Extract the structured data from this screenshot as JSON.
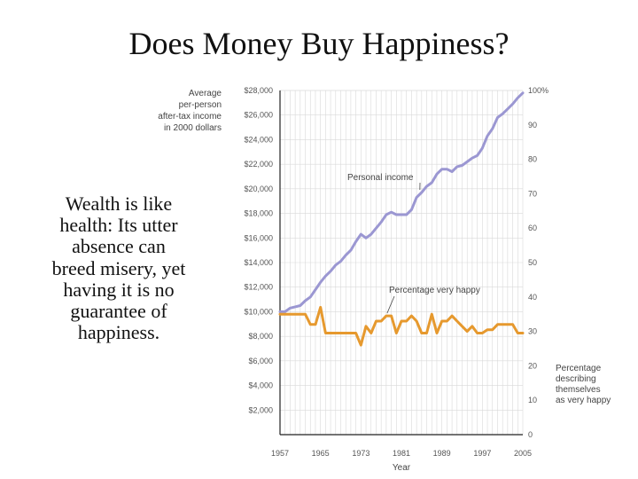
{
  "slide": {
    "title": "Does Money Buy Happiness?",
    "body_lines": [
      "Wealth is like",
      "health: Its utter",
      "absence can",
      "breed misery, yet",
      "having it is no",
      "guarantee of",
      "happiness."
    ]
  },
  "chart_data": {
    "type": "line",
    "xlabel": "Year",
    "x_ticks": [
      "1957",
      "1965",
      "1973",
      "1981",
      "1989",
      "1997",
      "2005"
    ],
    "xlim": [
      1957,
      2005
    ],
    "left_axis": {
      "label_lines": [
        "Average",
        "per-person",
        "after-tax income",
        "in 2000 dollars"
      ],
      "ylim": [
        0,
        28000
      ],
      "ticks": [
        "$2,000",
        "$4,000",
        "$6,000",
        "$8,000",
        "$10,000",
        "$12,000",
        "$14,000",
        "$16,000",
        "$18,000",
        "$20,000",
        "$22,000",
        "$24,000",
        "$26,000",
        "$28,000"
      ]
    },
    "right_axis": {
      "label_lines": [
        "Percentage",
        "describing",
        "themselves",
        "as very happy"
      ],
      "ylim": [
        0,
        100
      ],
      "ticks": [
        "0",
        "10",
        "20",
        "30",
        "40",
        "50",
        "60",
        "70",
        "80",
        "90",
        "100%"
      ]
    },
    "grid": true,
    "series": [
      {
        "name": "Personal income",
        "axis": "left",
        "color": "#9b97d2",
        "x": [
          1957,
          1958,
          1959,
          1960,
          1961,
          1962,
          1963,
          1964,
          1965,
          1966,
          1967,
          1968,
          1969,
          1970,
          1971,
          1972,
          1973,
          1974,
          1975,
          1976,
          1977,
          1978,
          1979,
          1980,
          1981,
          1982,
          1983,
          1984,
          1985,
          1986,
          1987,
          1988,
          1989,
          1990,
          1991,
          1992,
          1993,
          1994,
          1995,
          1996,
          1997,
          1998,
          1999,
          2000,
          2001,
          2002,
          2003,
          2004,
          2005
        ],
        "values": [
          10000,
          10000,
          10300,
          10400,
          10500,
          10900,
          11200,
          11800,
          12400,
          12900,
          13300,
          13800,
          14100,
          14600,
          15000,
          15700,
          16300,
          16000,
          16300,
          16800,
          17300,
          17900,
          18100,
          17900,
          17900,
          17900,
          18300,
          19300,
          19700,
          20200,
          20500,
          21200,
          21600,
          21600,
          21400,
          21800,
          21900,
          22200,
          22500,
          22700,
          23300,
          24300,
          24900,
          25800,
          26100,
          26500,
          26900,
          27400,
          27800
        ]
      },
      {
        "name": "Percentage very happy",
        "axis": "right",
        "color": "#e6992e",
        "x": [
          1957,
          1958,
          1959,
          1960,
          1961,
          1962,
          1963,
          1964,
          1965,
          1966,
          1967,
          1968,
          1969,
          1970,
          1971,
          1972,
          1973,
          1974,
          1975,
          1976,
          1977,
          1978,
          1979,
          1980,
          1981,
          1982,
          1983,
          1984,
          1985,
          1986,
          1987,
          1988,
          1989,
          1990,
          1991,
          1992,
          1993,
          1994,
          1995,
          1996,
          1997,
          1998,
          1999,
          2000,
          2001,
          2002,
          2003,
          2004,
          2005
        ],
        "values": [
          35,
          35,
          35,
          35,
          35,
          35,
          32,
          32,
          37,
          29.5,
          29.5,
          29.5,
          29.5,
          29.5,
          29.5,
          29.5,
          26,
          31.5,
          29.5,
          33,
          33,
          34.5,
          34.5,
          29.5,
          33,
          33,
          34.5,
          33,
          29.5,
          29.5,
          35,
          29.5,
          33,
          33,
          34.5,
          33,
          31.5,
          30,
          31.5,
          29.5,
          29.5,
          30.5,
          30.5,
          32,
          32,
          32,
          32,
          29.5,
          29.5
        ]
      }
    ],
    "annotations": [
      "Personal income",
      "Percentage very happy"
    ]
  }
}
